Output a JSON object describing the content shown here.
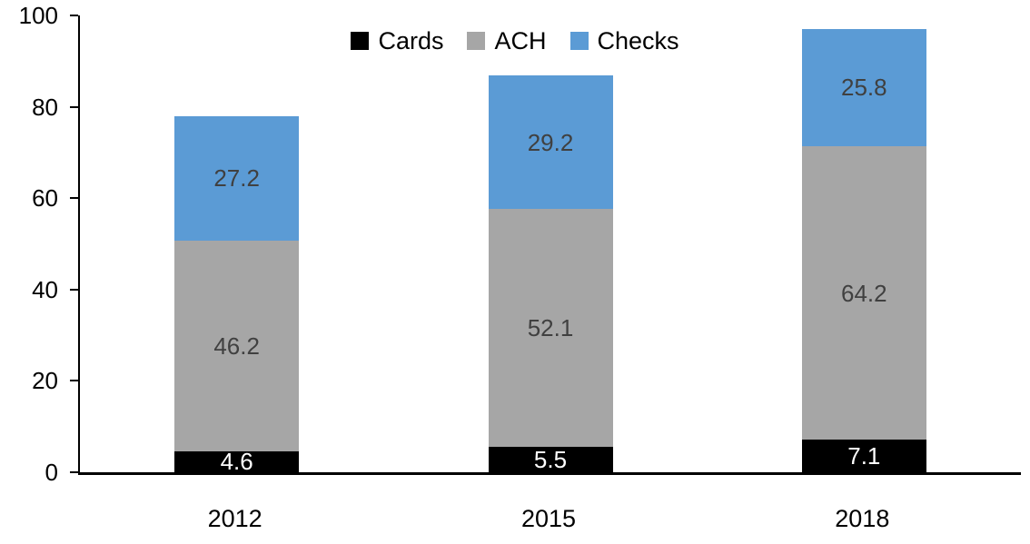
{
  "chart_data": {
    "type": "bar",
    "stacked": true,
    "title": "",
    "xlabel": "",
    "ylabel": "",
    "categories": [
      "2012",
      "2015",
      "2018"
    ],
    "series": [
      {
        "name": "Cards",
        "values": [
          4.6,
          5.5,
          7.1
        ],
        "color": "#000000",
        "label_color": "#ffffff"
      },
      {
        "name": "ACH",
        "values": [
          46.2,
          52.1,
          64.2
        ],
        "color": "#a6a6a6",
        "label_color": "#404040"
      },
      {
        "name": "Checks",
        "values": [
          27.2,
          29.2,
          25.8
        ],
        "color": "#5b9bd5",
        "label_color": "#404040"
      }
    ],
    "totals": [
      78.0,
      86.8,
      97.1
    ],
    "ylim": [
      0,
      100
    ],
    "yticks": [
      0,
      20,
      40,
      60,
      80,
      100
    ],
    "grid": false,
    "legend_position": "top-center"
  }
}
